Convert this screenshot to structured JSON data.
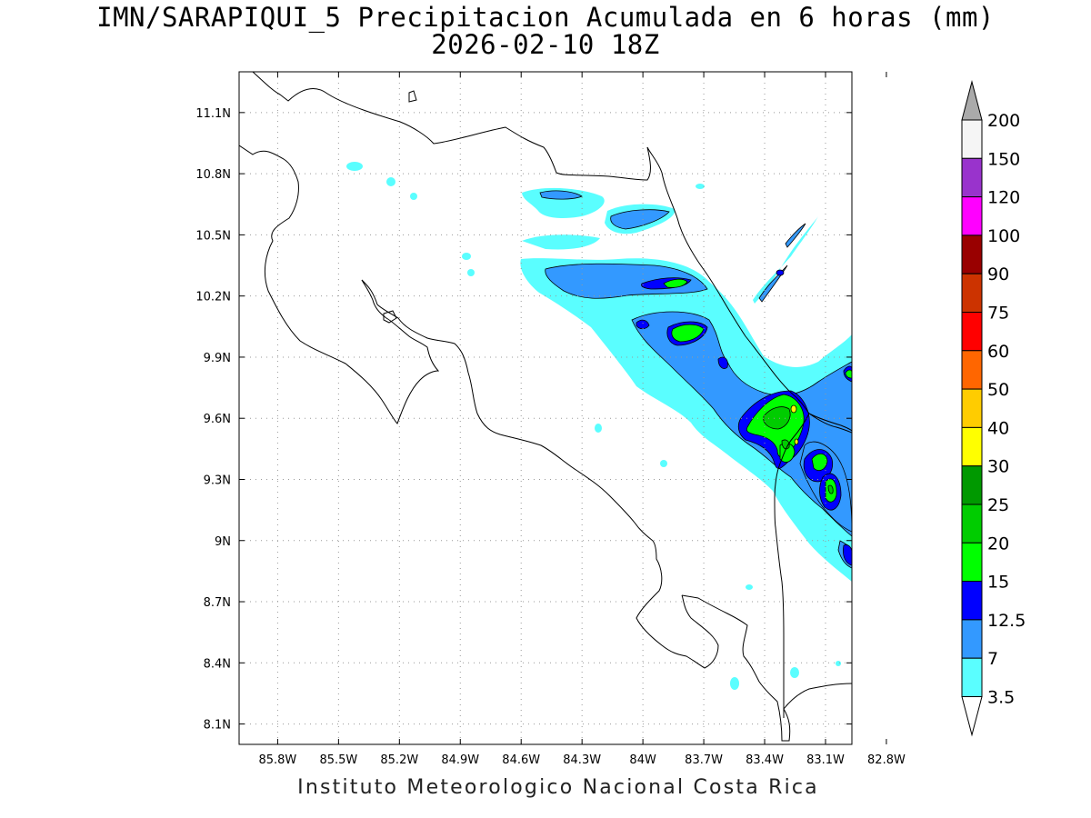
{
  "title": {
    "line1": "IMN/SARAPIQUI_5 Precipitacion Acumulada en 6 horas (mm)",
    "line2": "2026-02-10 18Z"
  },
  "footer": "Instituto Meteorologico Nacional Costa Rica",
  "axes": {
    "lon_range": [
      -85.99,
      -82.97
    ],
    "lat_range": [
      8.0,
      11.3
    ],
    "lon_ticks": [
      {
        "value": -85.8,
        "label": "85.8W"
      },
      {
        "value": -85.5,
        "label": "85.5W"
      },
      {
        "value": -85.2,
        "label": "85.2W"
      },
      {
        "value": -84.9,
        "label": "84.9W"
      },
      {
        "value": -84.6,
        "label": "84.6W"
      },
      {
        "value": -84.3,
        "label": "84.3W"
      },
      {
        "value": -84.0,
        "label": "84W"
      },
      {
        "value": -83.7,
        "label": "83.7W"
      },
      {
        "value": -83.4,
        "label": "83.4W"
      },
      {
        "value": -83.1,
        "label": "83.1W"
      },
      {
        "value": -82.8,
        "label": "82.8W"
      }
    ],
    "lat_ticks": [
      {
        "value": 11.1,
        "label": "11.1N"
      },
      {
        "value": 10.8,
        "label": "10.8N"
      },
      {
        "value": 10.5,
        "label": "10.5N"
      },
      {
        "value": 10.2,
        "label": "10.2N"
      },
      {
        "value": 9.9,
        "label": "9.9N"
      },
      {
        "value": 9.6,
        "label": "9.6N"
      },
      {
        "value": 9.3,
        "label": "9.3N"
      },
      {
        "value": 9.0,
        "label": "9N"
      },
      {
        "value": 8.7,
        "label": "8.7N"
      },
      {
        "value": 8.4,
        "label": "8.4N"
      },
      {
        "value": 8.1,
        "label": "8.1N"
      }
    ],
    "grid": "dotted"
  },
  "legend": {
    "units": "mm",
    "boundaries": [
      "3.5",
      "7",
      "12.5",
      "15",
      "20",
      "25",
      "30",
      "40",
      "50",
      "60",
      "75",
      "90",
      "100",
      "120",
      "150",
      "200"
    ],
    "colors": [
      "#5afeff",
      "#3399ff",
      "#0000ff",
      "#00ff00",
      "#00cc00",
      "#009900",
      "#ffff00",
      "#ffcc00",
      "#ff6600",
      "#ff0000",
      "#cc3300",
      "#990000",
      "#ff00ff",
      "#9933cc",
      "#f5f5f5"
    ],
    "below_color": "#ffffff",
    "above_color": "#aaaaaa"
  },
  "precip_colors": {
    "light": "#5afeff",
    "moderate": "#3399ff",
    "heavy": "#0000ff",
    "very_heavy": "#00ff00",
    "intense": "#00cc00",
    "extreme": "#ffff00"
  }
}
